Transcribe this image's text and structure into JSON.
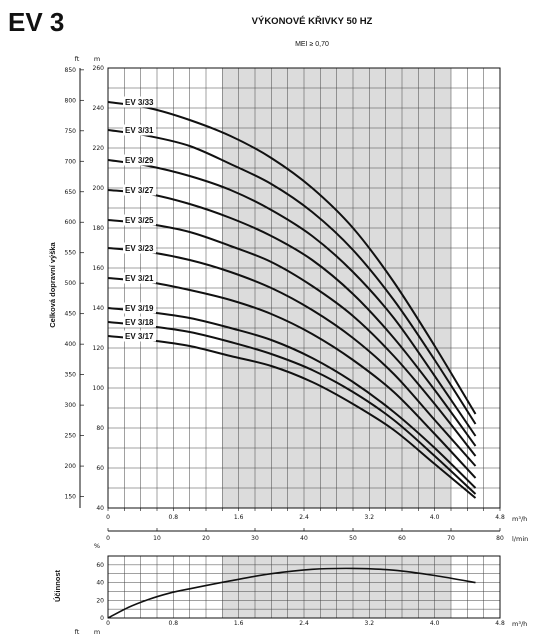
{
  "model_title": "EV 3",
  "chart_title": "VÝKONOVÉ KŘIVKY 50 HZ",
  "chart_subtitle": "MEI ≥ 0,70",
  "chart_data": [
    {
      "type": "line",
      "title": "VÝKONOVÉ KŘIVKY 50 HZ",
      "subtitle": "MEI ≥ 0,70",
      "ylabel": "Celková dopravní výška",
      "ylabel_units": [
        "ft",
        "m"
      ],
      "ylim": [
        40,
        260
      ],
      "y_ticks": [
        40,
        60,
        80,
        100,
        120,
        140,
        160,
        180,
        200,
        220,
        240,
        260
      ],
      "ft_ticks": [
        150,
        200,
        250,
        300,
        350,
        400,
        450,
        500,
        550,
        600,
        650,
        700,
        750,
        800,
        850
      ],
      "xlim": [
        0,
        4.8
      ],
      "x_unit": "m³/h",
      "x_ticks": [
        0,
        0.8,
        1.6,
        2.4,
        3.2,
        4.0,
        4.8
      ],
      "x_ticks_labels": [
        "0",
        "0.8",
        "1.6",
        "2.4",
        "3.2",
        "4.0",
        "4.8"
      ],
      "x2_unit": "l/min",
      "x2_ticks": [
        0,
        10,
        20,
        30,
        40,
        50,
        60,
        70,
        80
      ],
      "shaded_range_x": [
        1.4,
        4.2
      ],
      "series": [
        {
          "name": "EV 3/33",
          "x": [
            0,
            0.5,
            1.0,
            1.5,
            2.0,
            2.5,
            3.0,
            3.5,
            4.0,
            4.5
          ],
          "values": [
            243,
            240,
            234,
            226,
            215,
            200,
            180,
            153,
            121,
            87
          ]
        },
        {
          "name": "EV 3/31",
          "x": [
            0,
            0.5,
            1.0,
            1.5,
            2.0,
            2.5,
            3.0,
            3.5,
            4.0,
            4.5
          ],
          "values": [
            229,
            226,
            221,
            212,
            202,
            188,
            169,
            144,
            114,
            82
          ]
        },
        {
          "name": "EV 3/29",
          "x": [
            0,
            0.5,
            1.0,
            1.5,
            2.0,
            2.5,
            3.0,
            3.5,
            4.0,
            4.5
          ],
          "values": [
            214,
            211,
            206,
            199,
            189,
            176,
            158,
            135,
            106,
            76
          ]
        },
        {
          "name": "EV 3/27",
          "x": [
            0,
            0.5,
            1.0,
            1.5,
            2.0,
            2.5,
            3.0,
            3.5,
            4.0,
            4.5
          ],
          "values": [
            199,
            197,
            192,
            185,
            176,
            164,
            147,
            125,
            99,
            71
          ]
        },
        {
          "name": "EV 3/25",
          "x": [
            0,
            0.5,
            1.0,
            1.5,
            2.0,
            2.5,
            3.0,
            3.5,
            4.0,
            4.5
          ],
          "values": [
            184,
            182,
            178,
            171,
            163,
            151,
            136,
            116,
            92,
            66
          ]
        },
        {
          "name": "EV 3/23",
          "x": [
            0,
            0.5,
            1.0,
            1.5,
            2.0,
            2.5,
            3.0,
            3.5,
            4.0,
            4.5
          ],
          "values": [
            170,
            168,
            164,
            158,
            150,
            139,
            125,
            107,
            84,
            61
          ]
        },
        {
          "name": "EV 3/21",
          "x": [
            0,
            0.5,
            1.0,
            1.5,
            2.0,
            2.5,
            3.0,
            3.5,
            4.0,
            4.5
          ],
          "values": [
            155,
            153,
            149,
            144,
            137,
            127,
            114,
            98,
            77,
            55
          ]
        },
        {
          "name": "EV 3/19",
          "x": [
            0,
            0.5,
            1.0,
            1.5,
            2.0,
            2.5,
            3.0,
            3.5,
            4.0,
            4.5
          ],
          "values": [
            140,
            138,
            135,
            130,
            124,
            115,
            103,
            88,
            70,
            50
          ]
        },
        {
          "name": "EV 3/18",
          "x": [
            0,
            0.5,
            1.0,
            1.5,
            2.0,
            2.5,
            3.0,
            3.5,
            4.0,
            4.5
          ],
          "values": [
            133,
            131,
            128,
            123,
            117,
            109,
            98,
            84,
            66,
            47
          ]
        },
        {
          "name": "EV 3/17",
          "x": [
            0,
            0.5,
            1.0,
            1.5,
            2.0,
            2.5,
            3.0,
            3.5,
            4.0,
            4.5
          ],
          "values": [
            126,
            124,
            121,
            116,
            111,
            103,
            92,
            79,
            62,
            45
          ]
        }
      ]
    },
    {
      "type": "line",
      "ylabel": "Účinnost",
      "ylabel_unit": "%",
      "ylim": [
        0,
        70
      ],
      "y_ticks": [
        0,
        20,
        40,
        60
      ],
      "xlim": [
        0,
        4.8
      ],
      "x_unit": "m³/h",
      "x_ticks": [
        0,
        0.8,
        1.6,
        2.4,
        3.2,
        4.0,
        4.8
      ],
      "x_ticks_labels": [
        "0",
        "0.8",
        "1.6",
        "2.4",
        "3.2",
        "4.0",
        "4.8"
      ],
      "shaded_range_x": [
        1.4,
        4.2
      ],
      "series": [
        {
          "x": [
            0,
            0.25,
            0.5,
            0.75,
            1.0,
            1.5,
            2.0,
            2.5,
            3.0,
            3.5,
            4.0,
            4.5
          ],
          "values": [
            0,
            12,
            21,
            28,
            33,
            42,
            50,
            55,
            56,
            54,
            48,
            40
          ]
        }
      ]
    }
  ],
  "bottom_axis_units": [
    "ft",
    "m"
  ]
}
